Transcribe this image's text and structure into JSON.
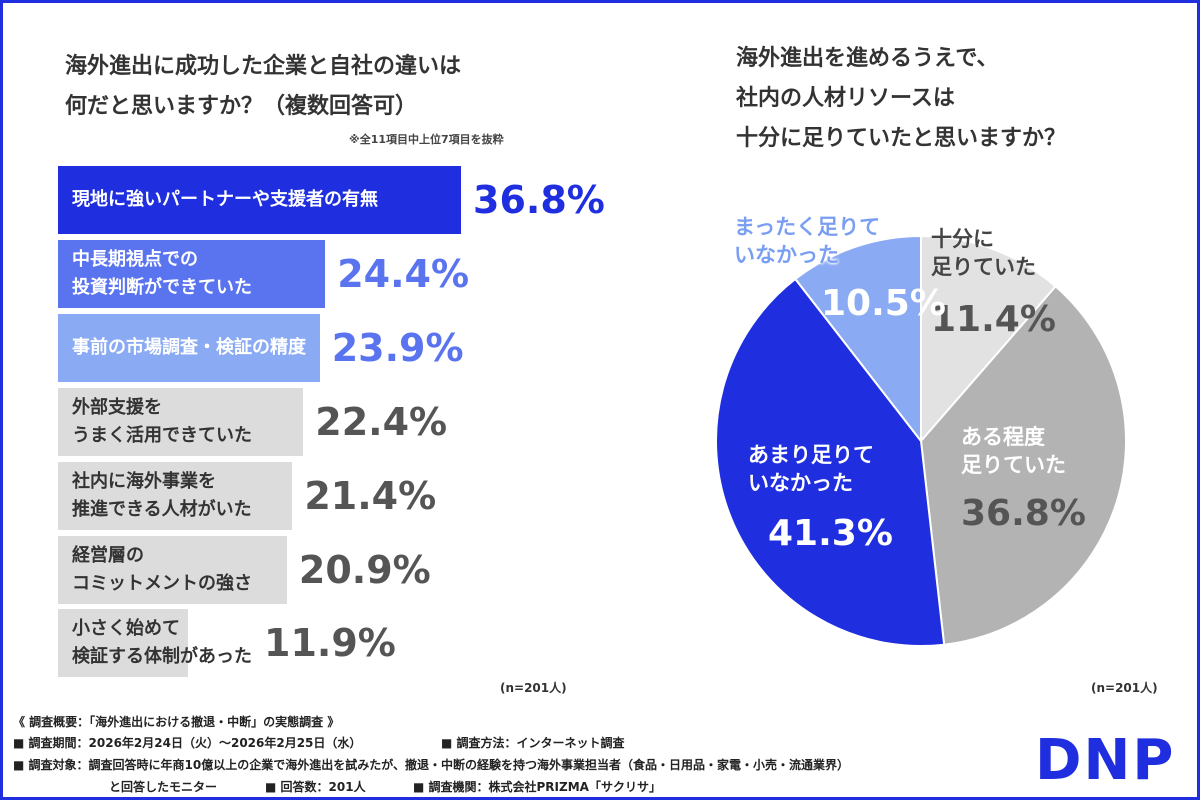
{
  "chart_data": [
    {
      "type": "bar",
      "orientation": "horizontal",
      "title": "海外進出に成功した企業と自社の違いは\n何だと思いますか？（複数回答可）",
      "subtitle": "※全11項目中上位7項目を抜粋",
      "categories": [
        "現地に強いパートナーや支援者の有無",
        "中長期視点での\n投資判断ができていた",
        "事前の市場調査・検証の精度",
        "外部支援を\nうまく活用できていた",
        "社内に海外事業を\n推進できる人材がいた",
        "経営層の\nコミットメントの強さ",
        "小さく始めて\n検証する体制があった"
      ],
      "values": [
        36.8,
        24.4,
        23.9,
        22.4,
        21.4,
        20.9,
        11.9
      ],
      "value_labels": [
        "36.8%",
        "24.4%",
        "23.9%",
        "22.4%",
        "21.4%",
        "20.9%",
        "11.9%"
      ],
      "colors": [
        "#1f2fe0",
        "#5a74ef",
        "#8aaaf4",
        "#dcdcdc",
        "#dcdcdc",
        "#dcdcdc",
        "#dcdcdc"
      ],
      "label_colors": [
        "#1f2fe0",
        "#5a74ef",
        "#5a74ef",
        "#555555",
        "#555555",
        "#555555",
        "#555555"
      ],
      "note": "(n=201人)"
    },
    {
      "type": "pie",
      "title": "海外進出を進めるうえで、\n社内の人材リソースは\n十分に足りていたと思いますか？",
      "categories": [
        "十分に\n足りていた",
        "ある程度\n足りていた",
        "あまり足りて\nいなかった",
        "まったく足りて\nいなかった"
      ],
      "values": [
        11.4,
        36.8,
        41.3,
        10.5
      ],
      "value_labels": [
        "11.4%",
        "36.8%",
        "41.3%",
        "10.5%"
      ],
      "colors": [
        "#e2e2e2",
        "#b3b3b3",
        "#1f2fe0",
        "#8aaaf4"
      ],
      "note": "(n=201人)"
    }
  ],
  "footer": {
    "heading": "《 調査概要：「海外進出における撤退・中断」の実態調査 》",
    "lines": [
      "■ 調査期間：2026年2月24日（火）〜2026年2月25日（水）",
      "■ 調査方法：インターネット調査",
      "■ 調査対象：調査回答時に年商10億以上の企業で海外進出を試みたが、撤退・中断の経験を持つ海外事業担当者（食品・日用品・家電・小売・流通業界）",
      "と回答したモニター",
      "■ 回答数：201人",
      "■ 調査機関：株式会社PRIZMA「サクリサ」"
    ],
    "logo": "DNP"
  }
}
